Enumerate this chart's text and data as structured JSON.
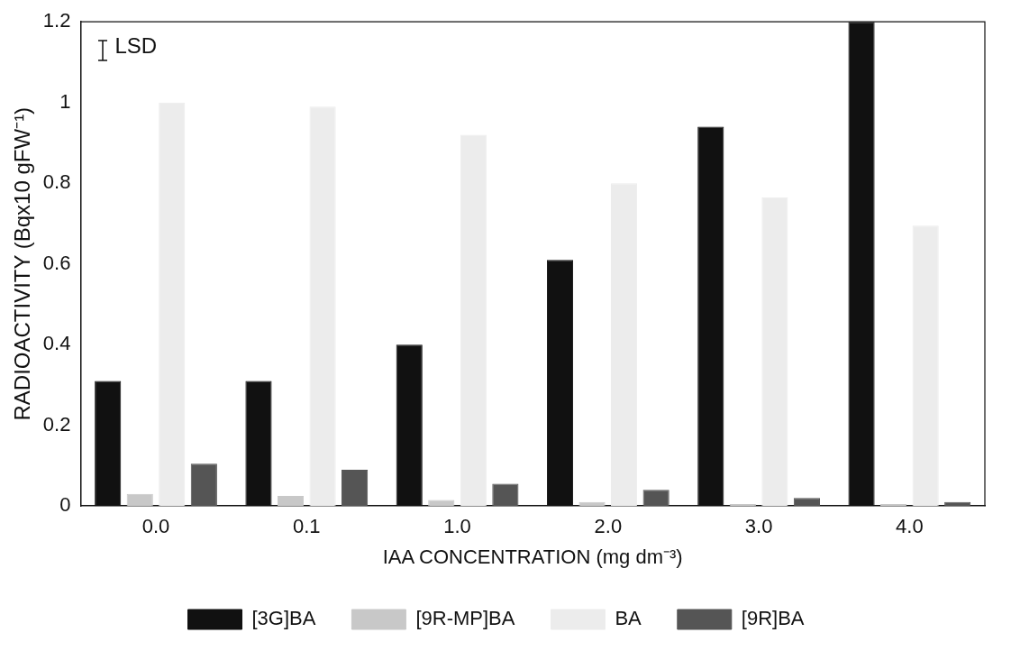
{
  "chart_data": {
    "type": "bar",
    "xlabel": "IAA CONCENTRATION (mg dm⁻³)",
    "ylabel": "RADIOACTIVITY (Bqx10 gFW⁻¹)",
    "categories": [
      "0.0",
      "0.1",
      "1.0",
      "2.0",
      "3.0",
      "4.0"
    ],
    "series": [
      {
        "name": "[3G]BA",
        "color": "#111111",
        "values": [
          0.31,
          0.31,
          0.4,
          0.61,
          0.94,
          1.2
        ]
      },
      {
        "name": "[9R-MP]BA",
        "color": "#c8c8c8",
        "values": [
          0.03,
          0.025,
          0.015,
          0.01,
          0.005,
          0.005
        ]
      },
      {
        "name": "BA",
        "color": "#ececec",
        "values": [
          1.0,
          0.99,
          0.92,
          0.8,
          0.765,
          0.695
        ]
      },
      {
        "name": "[9R]BA",
        "color": "#555555",
        "values": [
          0.105,
          0.09,
          0.055,
          0.04,
          0.02,
          0.01
        ]
      }
    ],
    "ylim": [
      0,
      1.2
    ],
    "yticks": [
      0,
      0.2,
      0.4,
      0.6,
      0.8,
      1,
      1.2
    ],
    "grid": false,
    "legend": "bottom",
    "annotations": [
      "LSD"
    ]
  }
}
